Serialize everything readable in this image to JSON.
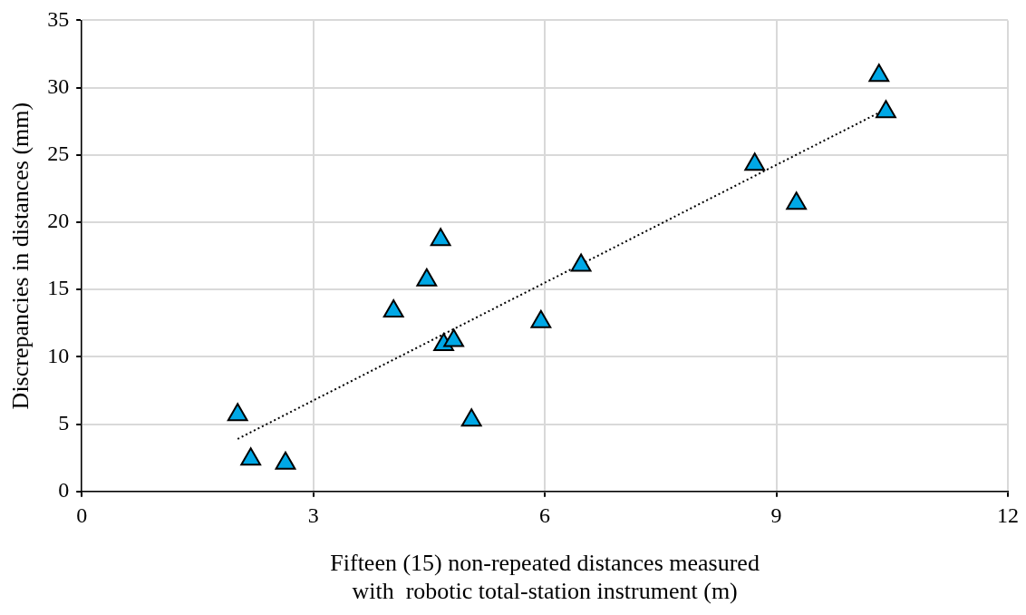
{
  "chart_data": {
    "type": "scatter",
    "xlabel": "Fifteen (15) non-repeated distances measured\nwith  robotic total-station instrument (m)",
    "ylabel": "Discrepancies in distances (mm)",
    "xlim": [
      0,
      12
    ],
    "xticks": [
      0,
      3,
      6,
      9,
      12
    ],
    "ylim": [
      0,
      35
    ],
    "yticks": [
      0,
      5,
      10,
      15,
      20,
      25,
      30,
      35
    ],
    "grid": true,
    "legend": false,
    "marker": "triangle",
    "series": [
      {
        "color": "#00a8e6",
        "x": [
          2.02,
          2.19,
          2.64,
          4.04,
          4.47,
          4.65,
          4.69,
          4.82,
          5.05,
          5.95,
          6.47,
          8.72,
          9.26,
          10.33,
          10.42
        ],
        "values": [
          5.7,
          2.4,
          2.1,
          13.4,
          15.7,
          18.7,
          10.9,
          11.2,
          5.3,
          12.6,
          16.8,
          24.3,
          21.4,
          30.9,
          28.2
        ]
      },
      {
        "type": "line",
        "color": "#000000",
        "line_style": "dotted",
        "marker": "none",
        "x": [
          2.02,
          10.42
        ],
        "values": [
          3.9,
          28.4
        ]
      }
    ]
  }
}
